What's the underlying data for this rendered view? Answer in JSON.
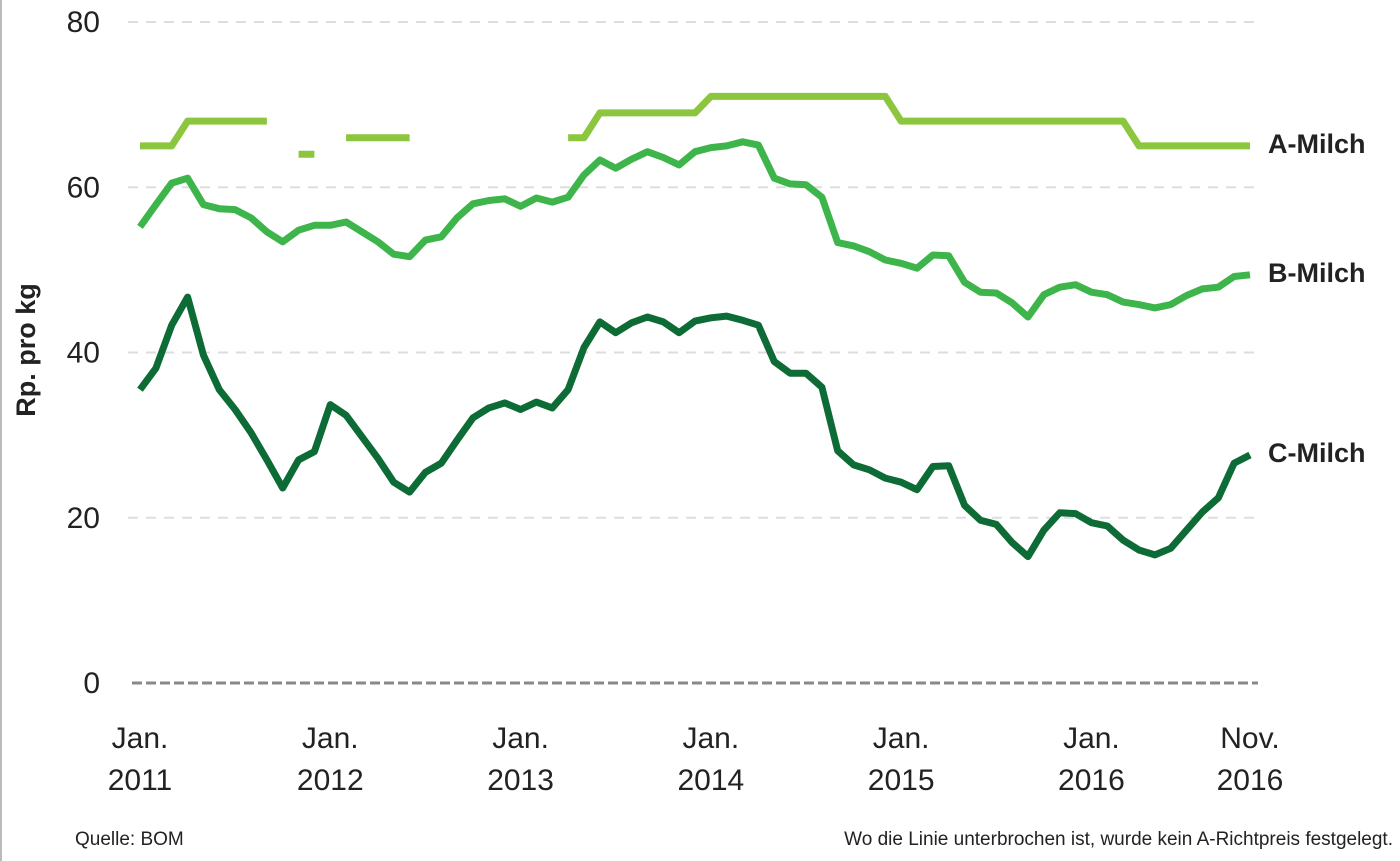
{
  "chart_data": {
    "type": "line",
    "y_label": "Rp. pro kg",
    "source": "Quelle: BOM",
    "note": "Wo die Linie unterbrochen ist, wurde kein A-Richtpreis festgelegt.",
    "x": [
      "2011-01",
      "2011-02",
      "2011-03",
      "2011-04",
      "2011-05",
      "2011-06",
      "2011-07",
      "2011-08",
      "2011-09",
      "2011-10",
      "2011-11",
      "2011-12",
      "2012-01",
      "2012-02",
      "2012-03",
      "2012-04",
      "2012-05",
      "2012-06",
      "2012-07",
      "2012-08",
      "2012-09",
      "2012-10",
      "2012-11",
      "2012-12",
      "2013-01",
      "2013-02",
      "2013-03",
      "2013-04",
      "2013-05",
      "2013-06",
      "2013-07",
      "2013-08",
      "2013-09",
      "2013-10",
      "2013-11",
      "2013-12",
      "2014-01",
      "2014-02",
      "2014-03",
      "2014-04",
      "2014-05",
      "2014-06",
      "2014-07",
      "2014-08",
      "2014-09",
      "2014-10",
      "2014-11",
      "2014-12",
      "2015-01",
      "2015-02",
      "2015-03",
      "2015-04",
      "2015-05",
      "2015-06",
      "2015-07",
      "2015-08",
      "2015-09",
      "2015-10",
      "2015-11",
      "2015-12",
      "2016-01",
      "2016-02",
      "2016-03",
      "2016-04",
      "2016-05",
      "2016-06",
      "2016-07",
      "2016-08",
      "2016-09",
      "2016-10",
      "2016-11"
    ],
    "xlim": [
      "2011-01",
      "2016-11"
    ],
    "xticks": [
      {
        "value": "2011-01",
        "label": [
          "Jan.",
          "2011"
        ]
      },
      {
        "value": "2012-01",
        "label": [
          "Jan.",
          "2012"
        ]
      },
      {
        "value": "2013-01",
        "label": [
          "Jan.",
          "2013"
        ]
      },
      {
        "value": "2014-01",
        "label": [
          "Jan.",
          "2014"
        ]
      },
      {
        "value": "2015-01",
        "label": [
          "Jan.",
          "2015"
        ]
      },
      {
        "value": "2016-01",
        "label": [
          "Jan.",
          "2016"
        ]
      },
      {
        "value": "2016-11",
        "label": [
          "Nov.",
          "2016"
        ]
      }
    ],
    "ylim": [
      0,
      80
    ],
    "yticks": [
      0,
      20,
      40,
      60,
      80
    ],
    "grid": true,
    "series": [
      {
        "name": "A-Milch",
        "color": "#8cc63f",
        "values": [
          65,
          65,
          65,
          68,
          68,
          68,
          68,
          68,
          68,
          null,
          64,
          64,
          null,
          66,
          66,
          66,
          66,
          66,
          null,
          null,
          null,
          null,
          null,
          null,
          null,
          null,
          null,
          66,
          66,
          69,
          69,
          69,
          69,
          69,
          69,
          69,
          71,
          71,
          71,
          71,
          71,
          71,
          71,
          71,
          71,
          71,
          71,
          71,
          68,
          68,
          68,
          68,
          68,
          68,
          68,
          68,
          68,
          68,
          68,
          68,
          68,
          68,
          68,
          65,
          65,
          65,
          65,
          65,
          65,
          65,
          65
        ]
      },
      {
        "name": "B-Milch",
        "color": "#3db54a",
        "values": [
          55.2,
          57.9,
          60.5,
          61.1,
          57.9,
          57.4,
          57.3,
          56.3,
          54.6,
          53.4,
          54.8,
          55.4,
          55.4,
          55.8,
          54.6,
          53.4,
          51.9,
          51.6,
          53.6,
          54.0,
          56.3,
          58.0,
          58.4,
          58.6,
          57.7,
          58.7,
          58.2,
          58.8,
          61.5,
          63.3,
          62.3,
          63.4,
          64.3,
          63.6,
          62.7,
          64.3,
          64.8,
          65.0,
          65.5,
          65.1,
          61.1,
          60.4,
          60.3,
          58.8,
          53.3,
          52.9,
          52.2,
          51.2,
          50.8,
          50.2,
          51.8,
          51.7,
          48.5,
          47.3,
          47.2,
          46.0,
          44.3,
          47.0,
          47.9,
          48.2,
          47.3,
          47.0,
          46.1,
          45.8,
          45.4,
          45.8,
          46.9,
          47.7,
          47.9,
          49.2,
          49.4
        ]
      },
      {
        "name": "C-Milch",
        "color": "#0d6b36",
        "values": [
          35.5,
          38.1,
          43.3,
          46.7,
          39.7,
          35.5,
          33.1,
          30.3,
          27.0,
          23.6,
          27.0,
          28.0,
          33.7,
          32.4,
          29.8,
          27.2,
          24.3,
          23.1,
          25.5,
          26.6,
          29.4,
          32.1,
          33.3,
          33.9,
          33.1,
          34.0,
          33.3,
          35.5,
          40.6,
          43.7,
          42.4,
          43.6,
          44.3,
          43.7,
          42.4,
          43.8,
          44.2,
          44.4,
          43.9,
          43.3,
          38.9,
          37.5,
          37.5,
          35.8,
          28.1,
          26.4,
          25.8,
          24.8,
          24.3,
          23.4,
          26.2,
          26.3,
          21.5,
          19.7,
          19.2,
          17.0,
          15.3,
          18.5,
          20.6,
          20.5,
          19.4,
          19.0,
          17.3,
          16.1,
          15.5,
          16.3,
          18.5,
          20.7,
          22.4,
          26.6,
          27.6
        ]
      }
    ]
  }
}
